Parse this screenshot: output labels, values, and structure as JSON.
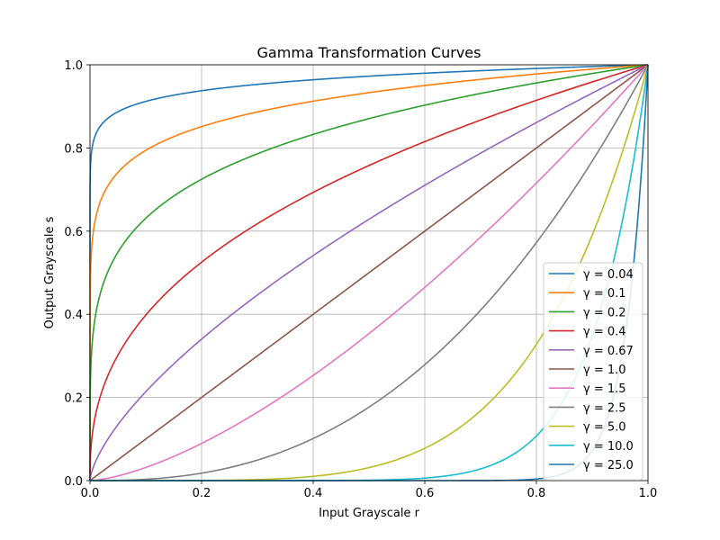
{
  "chart_data": {
    "type": "line",
    "title": "Gamma Transformation Curves",
    "xlabel": "Input Grayscale r",
    "ylabel": "Output Grayscale s",
    "xlim": [
      0,
      1
    ],
    "ylim": [
      0,
      1
    ],
    "xticks": [
      "0.0",
      "0.2",
      "0.4",
      "0.6",
      "0.8",
      "1.0"
    ],
    "yticks": [
      "0.0",
      "0.2",
      "0.4",
      "0.6",
      "0.8",
      "1.0"
    ],
    "grid": true,
    "legend_position": "lower-right",
    "function": "s = r^γ",
    "series": [
      {
        "name": "γ = 0.04",
        "gamma": 0.04,
        "color": "#1f77b4"
      },
      {
        "name": "γ = 0.1",
        "gamma": 0.1,
        "color": "#ff7f0e"
      },
      {
        "name": "γ = 0.2",
        "gamma": 0.2,
        "color": "#2ca02c"
      },
      {
        "name": "γ = 0.4",
        "gamma": 0.4,
        "color": "#d62728"
      },
      {
        "name": "γ = 0.67",
        "gamma": 0.67,
        "color": "#9467bd"
      },
      {
        "name": "γ = 1.0",
        "gamma": 1.0,
        "color": "#8c564b"
      },
      {
        "name": "γ = 1.5",
        "gamma": 1.5,
        "color": "#e377c2"
      },
      {
        "name": "γ = 2.5",
        "gamma": 2.5,
        "color": "#7f7f7f"
      },
      {
        "name": "γ = 5.0",
        "gamma": 5.0,
        "color": "#bcbd22"
      },
      {
        "name": "γ = 10.0",
        "gamma": 10.0,
        "color": "#17becf"
      },
      {
        "name": "γ = 25.0",
        "gamma": 25.0,
        "color": "#1f77b4"
      }
    ]
  }
}
